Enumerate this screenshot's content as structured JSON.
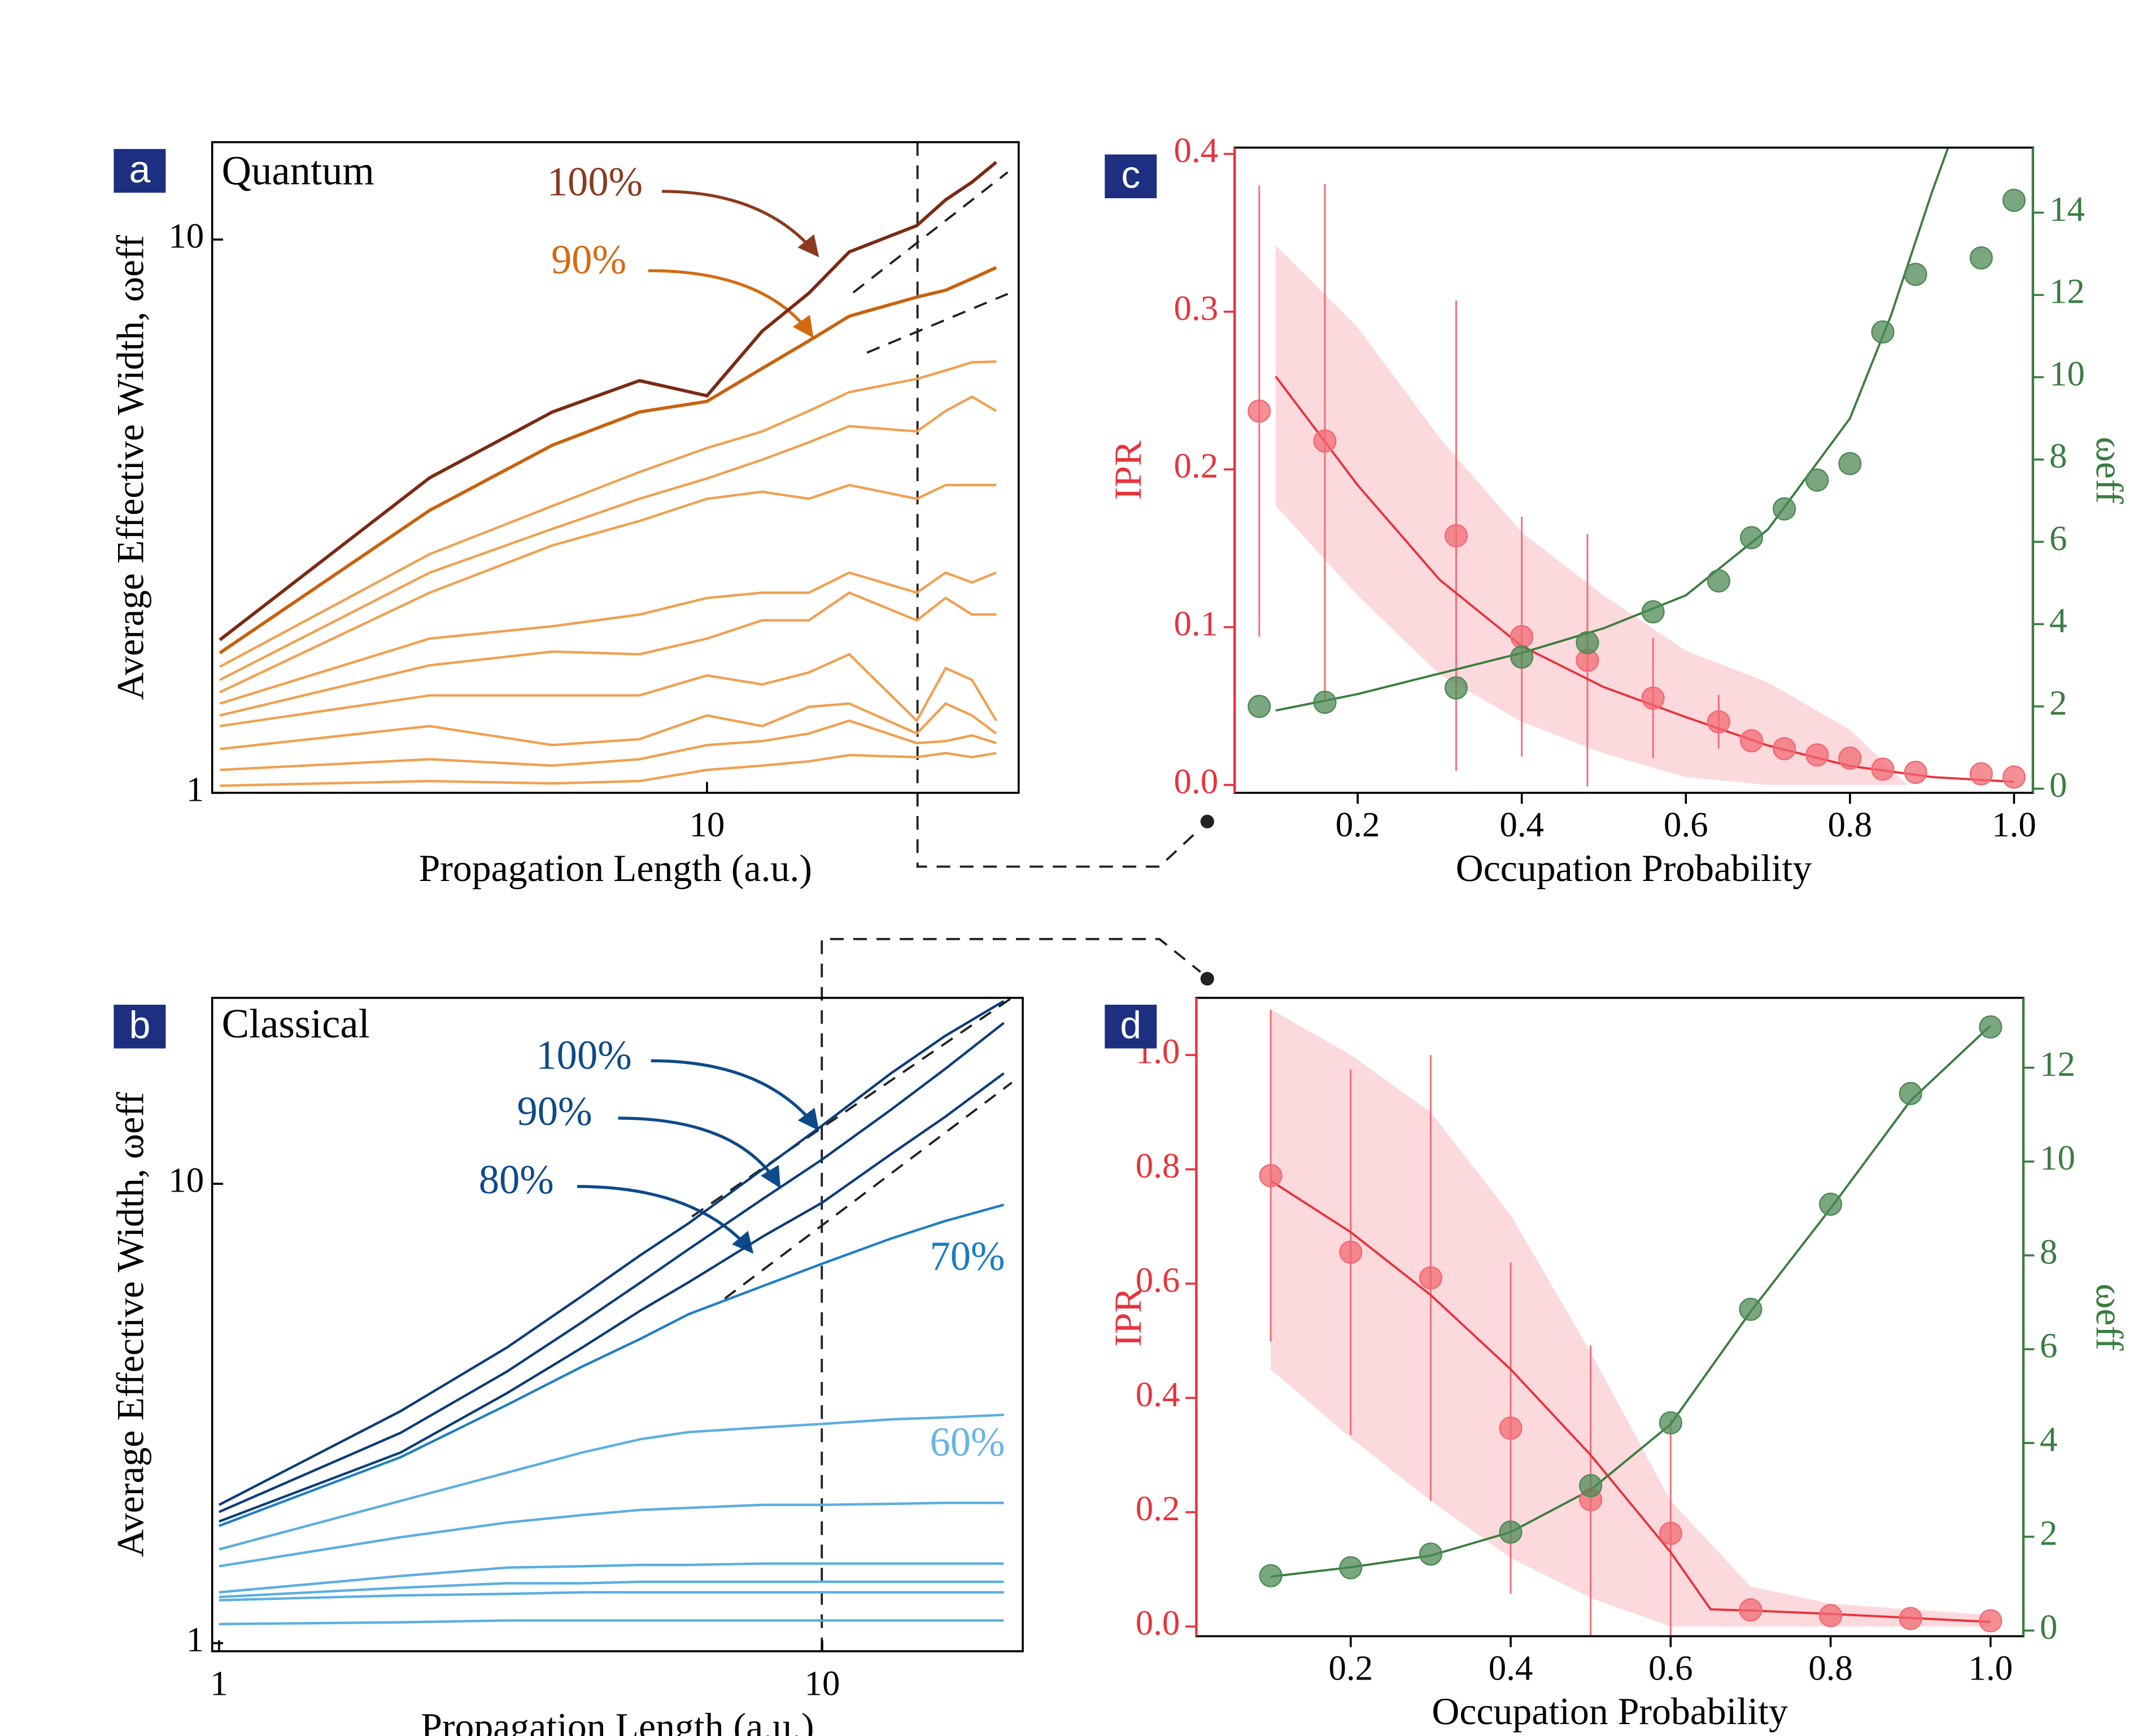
{
  "chart_data": [
    {
      "type": "line",
      "label": "a",
      "xlog": true,
      "ylog": true,
      "ylabel": "Average Effective Width, ωeff",
      "xlabel": "Propagation Length (a.u.)",
      "annotations": [
        "Quantum",
        "100%",
        "90%"
      ],
      "x": [
        2,
        4,
        6,
        8,
        10,
        12,
        14,
        16,
        20,
        22,
        24,
        26
      ],
      "xlim": [
        1.95,
        28
      ],
      "ylim": [
        1,
        15
      ],
      "xticks": [
        10
      ],
      "yticks": [
        1,
        10
      ],
      "series": [
        {
          "color": "#7a2a14",
          "values": [
            1.89,
            3.71,
            4.88,
            5.56,
            5.22,
            6.83,
            8.0,
            9.5,
            10.6,
            11.8,
            12.7,
            13.8
          ]
        },
        {
          "color": "#c8620e",
          "values": [
            1.79,
            3.24,
            4.25,
            4.88,
            5.1,
            5.85,
            6.56,
            7.27,
            7.87,
            8.1,
            8.5,
            8.9
          ]
        },
        {
          "color": "#f0a050",
          "values": [
            1.69,
            2.7,
            3.3,
            3.8,
            4.2,
            4.5,
            4.9,
            5.3,
            5.6,
            5.8,
            6.0,
            6.02
          ]
        },
        {
          "color": "#f0a050",
          "values": [
            1.6,
            2.5,
            3.0,
            3.4,
            3.7,
            4.0,
            4.3,
            4.6,
            4.5,
            4.9,
            5.2,
            4.9
          ]
        },
        {
          "color": "#f0a050",
          "values": [
            1.52,
            2.3,
            2.8,
            3.1,
            3.4,
            3.5,
            3.4,
            3.6,
            3.4,
            3.6,
            3.6,
            3.6
          ]
        },
        {
          "color": "#f0a050",
          "values": [
            1.45,
            1.9,
            2.0,
            2.1,
            2.25,
            2.3,
            2.3,
            2.5,
            2.3,
            2.5,
            2.4,
            2.5
          ]
        },
        {
          "color": "#f0a050",
          "values": [
            1.38,
            1.7,
            1.8,
            1.78,
            1.9,
            2.05,
            2.05,
            2.3,
            2.05,
            2.25,
            2.1,
            2.1
          ]
        },
        {
          "color": "#f0a050",
          "values": [
            1.32,
            1.5,
            1.5,
            1.5,
            1.63,
            1.57,
            1.65,
            1.78,
            1.35,
            1.68,
            1.6,
            1.35
          ]
        },
        {
          "color": "#f0a050",
          "values": [
            1.2,
            1.32,
            1.22,
            1.25,
            1.38,
            1.32,
            1.43,
            1.45,
            1.28,
            1.45,
            1.38,
            1.28
          ]
        },
        {
          "color": "#f0a050",
          "values": [
            1.1,
            1.15,
            1.12,
            1.15,
            1.22,
            1.24,
            1.28,
            1.35,
            1.23,
            1.24,
            1.27,
            1.23
          ]
        },
        {
          "color": "#f0a050",
          "values": [
            1.03,
            1.05,
            1.04,
            1.05,
            1.1,
            1.12,
            1.14,
            1.17,
            1.16,
            1.18,
            1.16,
            1.18
          ]
        }
      ]
    },
    {
      "type": "line",
      "label": "b",
      "xlog": true,
      "ylog": true,
      "ylabel": "Average Effective Width, ωeff",
      "xlabel": "Propagation Length (a.u.)",
      "annotations": [
        "Classical",
        "100%",
        "90%",
        "80%",
        "70%",
        "60%"
      ],
      "x": [
        1,
        2,
        3,
        4,
        5,
        6,
        8,
        10,
        13,
        16,
        20
      ],
      "xlim": [
        0.974,
        21.5
      ],
      "ylim": [
        0.96,
        25.4
      ],
      "xticks": [
        1,
        10
      ],
      "yticks": [
        1,
        10
      ],
      "series": [
        {
          "color": "#0d3c78",
          "values": [
            2.0,
            3.2,
            4.4,
            5.7,
            7.0,
            8.2,
            10.8,
            13.4,
            17.4,
            21,
            25
          ]
        },
        {
          "color": "#0d3c78",
          "values": [
            1.93,
            2.87,
            3.9,
            5.0,
            6.1,
            7.2,
            9.3,
            11.3,
            14.5,
            17.8,
            22.4
          ]
        },
        {
          "color": "#0d3c78",
          "values": [
            1.84,
            2.6,
            3.5,
            4.4,
            5.3,
            6.1,
            7.7,
            9.1,
            11.6,
            14,
            17.4
          ]
        },
        {
          "color": "#1f7fc4",
          "values": [
            1.8,
            2.54,
            3.3,
            4.0,
            4.6,
            5.2,
            6.0,
            6.7,
            7.6,
            8.3,
            9.0
          ]
        },
        {
          "color": "#5aaee0",
          "values": [
            1.6,
            2.04,
            2.35,
            2.6,
            2.78,
            2.88,
            2.95,
            3.0,
            3.07,
            3.1,
            3.14
          ]
        },
        {
          "color": "#5aaee0",
          "values": [
            1.47,
            1.7,
            1.83,
            1.9,
            1.95,
            1.97,
            2.0,
            2.0,
            2.01,
            2.02,
            2.02
          ]
        },
        {
          "color": "#5aaee0",
          "values": [
            1.29,
            1.4,
            1.46,
            1.47,
            1.48,
            1.48,
            1.49,
            1.49,
            1.49,
            1.49,
            1.49
          ]
        },
        {
          "color": "#5aaee0",
          "values": [
            1.26,
            1.32,
            1.35,
            1.35,
            1.36,
            1.36,
            1.36,
            1.36,
            1.36,
            1.36,
            1.36
          ]
        },
        {
          "color": "#5aaee0",
          "values": [
            1.24,
            1.27,
            1.28,
            1.29,
            1.29,
            1.29,
            1.29,
            1.29,
            1.29,
            1.29,
            1.29
          ]
        },
        {
          "color": "#5aaee0",
          "values": [
            1.1,
            1.11,
            1.12,
            1.12,
            1.12,
            1.12,
            1.12,
            1.12,
            1.12,
            1.12,
            1.12
          ]
        }
      ]
    },
    {
      "type": "scatter",
      "label": "c",
      "ylabel": "IPR",
      "y2label": "ωeff",
      "xlabel": "Occupation Probability",
      "ycolor": "#e8323c",
      "y2color": "#3a7d3f",
      "x": [
        0.08,
        0.16,
        0.32,
        0.4,
        0.48,
        0.56,
        0.64,
        0.68,
        0.72,
        0.76,
        0.8,
        0.84,
        0.88,
        0.96,
        1.0
      ],
      "xlim": [
        0.05,
        1.023
      ],
      "ylim": [
        -0.005,
        0.404
      ],
      "y2lim": [
        -0.1,
        15.58
      ],
      "xticks": [
        0.2,
        0.4,
        0.6,
        0.8,
        {
          "value": 1,
          "label": "1.0"
        }
      ],
      "yticks": [
        {
          "value": 0,
          "label": "0.0"
        },
        0.1,
        0.2,
        0.3,
        0.4
      ],
      "y2ticks": [
        0,
        2,
        4,
        6,
        8,
        10,
        12,
        14
      ],
      "series": [
        {
          "color": "#f26a73",
          "values": [
            0.237,
            0.218,
            0.158,
            0.094,
            0.079,
            0.055,
            0.04,
            0.028,
            0.023,
            0.019,
            0.017,
            0.01,
            0.008,
            0.007,
            0.005
          ],
          "errors": [
            0.143,
            0.163,
            0.149,
            0.076,
            0.08,
            0.038,
            0.017,
            0,
            0,
            0,
            0,
            0,
            0,
            0,
            0
          ]
        },
        {
          "color": "#4d8a55",
          "axis": "y2",
          "values": [
            2.0,
            2.1,
            2.45,
            3.2,
            3.55,
            4.3,
            5.05,
            6.1,
            6.8,
            7.5,
            7.9,
            11.1,
            12.5,
            12.9,
            14.3
          ]
        }
      ],
      "fits": [
        {
          "color": "#e8323c",
          "x": [
            0.1,
            0.2,
            0.3,
            0.4,
            0.5,
            0.6,
            0.7,
            0.8,
            0.9,
            1.0
          ],
          "values": [
            0.259,
            0.19,
            0.13,
            0.088,
            0.062,
            0.043,
            0.025,
            0.012,
            0.005,
            0.002
          ]
        },
        {
          "color": "#3a7d3f",
          "axis": "y2",
          "x": [
            0.1,
            0.2,
            0.3,
            0.4,
            0.5,
            0.6,
            0.7,
            0.8,
            0.85,
            0.9,
            0.92
          ],
          "values": [
            1.9,
            2.3,
            2.8,
            3.3,
            3.9,
            4.7,
            6.3,
            9.0,
            11.5,
            14.5,
            15.6
          ]
        }
      ],
      "band": {
        "color": "#fbd9dc",
        "x": [
          0.1,
          0.2,
          0.3,
          0.4,
          0.5,
          0.6,
          0.7,
          0.8,
          0.87
        ],
        "upper": [
          0.342,
          0.29,
          0.22,
          0.16,
          0.12,
          0.085,
          0.065,
          0.035,
          0.0
        ],
        "lower": [
          0.177,
          0.12,
          0.07,
          0.04,
          0.02,
          0.005,
          0,
          0,
          0
        ]
      }
    },
    {
      "type": "scatter",
      "label": "d",
      "ylabel": "IPR",
      "y2label": "ωeff",
      "xlabel": "Occupation Probability",
      "ycolor": "#e8323c",
      "y2color": "#3a7d3f",
      "x": [
        0.1,
        0.2,
        0.3,
        0.4,
        0.5,
        0.6,
        0.7,
        0.8,
        0.9,
        1.0
      ],
      "xlim": [
        0.007,
        1.041
      ],
      "ylim": [
        -0.017,
        1.1
      ],
      "y2lim": [
        -0.12,
        13.49
      ],
      "xticks": [
        0.2,
        0.4,
        0.6,
        0.8,
        {
          "value": 1,
          "label": "1.0"
        }
      ],
      "yticks": [
        {
          "value": 0,
          "label": "0.0"
        },
        0.2,
        0.4,
        0.6,
        0.8,
        {
          "value": 1,
          "label": "1.0"
        }
      ],
      "y2ticks": [
        0,
        2,
        4,
        6,
        8,
        10,
        12
      ],
      "series": [
        {
          "color": "#f26a73",
          "values": [
            0.789,
            0.655,
            0.61,
            0.347,
            0.222,
            0.163,
            0.029,
            0.019,
            0.014,
            0.01
          ],
          "errors": [
            0.29,
            0.32,
            0.39,
            0.29,
            0.27,
            0.2,
            0,
            0,
            0,
            0
          ]
        },
        {
          "color": "#4d8a55",
          "axis": "y2",
          "values": [
            1.17,
            1.34,
            1.63,
            2.1,
            3.09,
            4.43,
            6.85,
            9.09,
            11.45,
            12.87
          ]
        }
      ],
      "fits": [
        {
          "color": "#e8323c",
          "x": [
            0.1,
            0.2,
            0.3,
            0.4,
            0.5,
            0.6,
            0.65,
            0.7,
            0.8,
            0.9,
            1.0
          ],
          "values": [
            0.78,
            0.69,
            0.58,
            0.45,
            0.3,
            0.13,
            0.03,
            0.028,
            0.022,
            0.015,
            0.008
          ]
        },
        {
          "color": "#3a7d3f",
          "axis": "y2",
          "x": [
            0.1,
            0.2,
            0.3,
            0.4,
            0.5,
            0.6,
            0.7,
            0.8,
            0.9,
            1.0
          ],
          "values": [
            1.15,
            1.35,
            1.6,
            2.1,
            3.0,
            4.4,
            6.8,
            9.0,
            11.3,
            12.9
          ]
        }
      ],
      "band": {
        "color": "#fbd9dc",
        "x": [
          0.1,
          0.2,
          0.3,
          0.4,
          0.5,
          0.6,
          0.7,
          0.8,
          0.9,
          1.0
        ],
        "upper": [
          1.08,
          1.0,
          0.9,
          0.72,
          0.48,
          0.22,
          0.07,
          0.04,
          0.03,
          0.02
        ],
        "lower": [
          0.45,
          0.33,
          0.22,
          0.12,
          0.05,
          0.0,
          0,
          0,
          0,
          0
        ]
      }
    }
  ]
}
